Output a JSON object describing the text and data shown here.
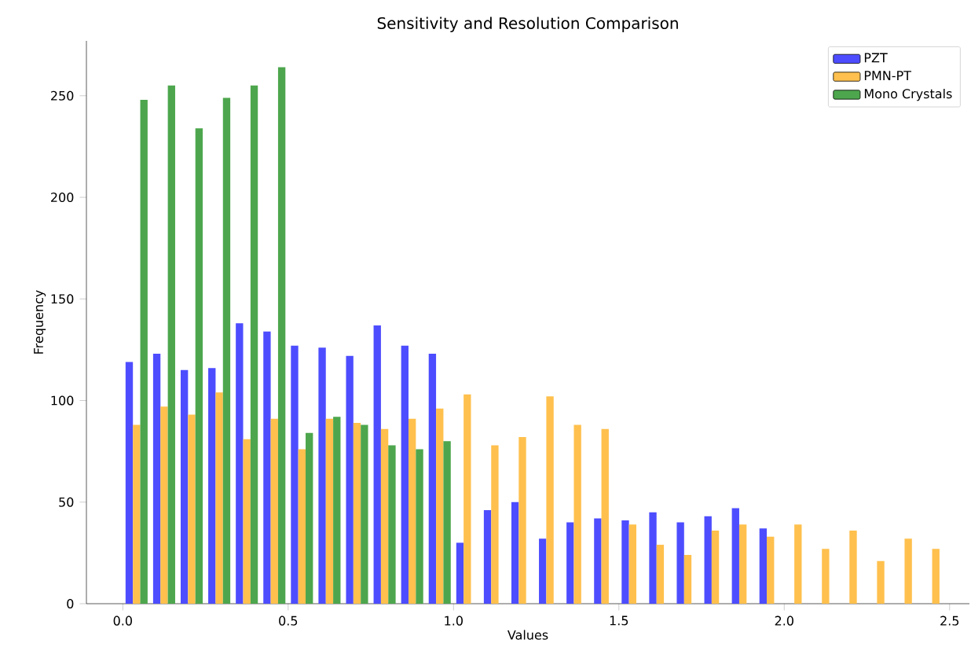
{
  "chart_data": {
    "type": "histogram",
    "title": "Sensitivity and Resolution Comparison",
    "xlabel": "Values",
    "ylabel": "Frequency",
    "bins": [
      0,
      0.08333,
      0.16667,
      0.25,
      0.33333,
      0.41667,
      0.5,
      0.58333,
      0.66667,
      0.75,
      0.83333,
      0.91667,
      1,
      1.08333,
      1.16667,
      1.25,
      1.33333,
      1.41667,
      1.5,
      1.58333,
      1.66667,
      1.75,
      1.83333,
      1.91667,
      2,
      2.08333,
      2.16667,
      2.25,
      2.33333,
      2.41667,
      2.5
    ],
    "series": [
      {
        "name": "PZT",
        "color": "#4d4dff",
        "values": [
          119,
          123,
          115,
          116,
          138,
          134,
          127,
          126,
          122,
          137,
          127,
          123,
          30,
          46,
          50,
          32,
          40,
          42,
          41,
          45,
          40,
          43,
          47,
          37,
          0,
          0,
          0,
          0,
          0,
          0
        ]
      },
      {
        "name": "PMN-PT",
        "color": "#ffc04d",
        "values": [
          88,
          97,
          93,
          104,
          81,
          91,
          76,
          91,
          89,
          86,
          91,
          96,
          103,
          78,
          82,
          102,
          88,
          86,
          39,
          29,
          24,
          36,
          39,
          33,
          39,
          27,
          36,
          21,
          32,
          27
        ]
      },
      {
        "name": "Mono Crystals",
        "color": "#4da64d",
        "values": [
          248,
          255,
          234,
          249,
          255,
          264,
          84,
          92,
          88,
          78,
          76,
          80,
          0,
          0,
          0,
          0,
          0,
          0,
          0,
          0,
          0,
          0,
          0,
          0,
          0,
          0,
          0,
          0,
          0,
          0
        ]
      }
    ],
    "xlim": [
      -0.11,
      2.56
    ],
    "ylim": [
      0,
      277
    ],
    "xticks": [
      {
        "value": 0,
        "label": "0.0"
      },
      {
        "value": 0.5,
        "label": "0.5"
      },
      {
        "value": 1,
        "label": "1.0"
      },
      {
        "value": 1.5,
        "label": "1.5"
      },
      {
        "value": 2,
        "label": "2.0"
      },
      {
        "value": 2.5,
        "label": "2.5"
      }
    ],
    "yticks": [
      0,
      50,
      100,
      150,
      200,
      250
    ],
    "legend": "top right",
    "grid": false
  }
}
